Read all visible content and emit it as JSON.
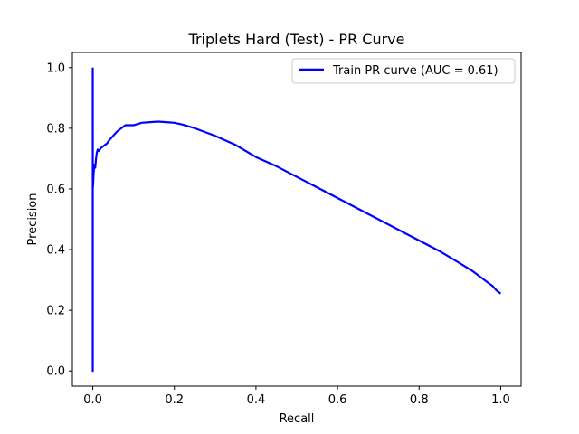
{
  "chart_data": {
    "type": "line",
    "title": "Triplets Hard (Test) - PR Curve",
    "xlabel": "Recall",
    "ylabel": "Precision",
    "xlim": [
      -0.05,
      1.05
    ],
    "ylim": [
      -0.05,
      1.05
    ],
    "xticks": [
      0.0,
      0.2,
      0.4,
      0.6,
      0.8,
      1.0
    ],
    "xtick_labels": [
      "0.0",
      "0.2",
      "0.4",
      "0.6",
      "0.8",
      "1.0"
    ],
    "yticks": [
      0.0,
      0.2,
      0.4,
      0.6,
      0.8,
      1.0
    ],
    "ytick_labels": [
      "0.0",
      "0.2",
      "0.4",
      "0.6",
      "0.8",
      "1.0"
    ],
    "grid": false,
    "legend_position": "top-right",
    "series": [
      {
        "name": "Train PR curve (AUC = 0.61)",
        "color": "#0000ff",
        "x": [
          0.0,
          0.0,
          0.0,
          0.001,
          0.002,
          0.004,
          0.006,
          0.008,
          0.01,
          0.012,
          0.015,
          0.02,
          0.025,
          0.03,
          0.035,
          0.04,
          0.05,
          0.06,
          0.07,
          0.08,
          0.1,
          0.12,
          0.14,
          0.16,
          0.18,
          0.2,
          0.22,
          0.25,
          0.3,
          0.35,
          0.4,
          0.45,
          0.5,
          0.55,
          0.6,
          0.65,
          0.7,
          0.75,
          0.8,
          0.85,
          0.9,
          0.93,
          0.95,
          0.97,
          0.98,
          0.99,
          1.0
        ],
        "y": [
          1.0,
          0.0,
          0.6,
          0.62,
          0.65,
          0.68,
          0.67,
          0.7,
          0.72,
          0.73,
          0.725,
          0.735,
          0.74,
          0.745,
          0.75,
          0.76,
          0.775,
          0.79,
          0.8,
          0.81,
          0.81,
          0.818,
          0.82,
          0.822,
          0.82,
          0.818,
          0.812,
          0.8,
          0.775,
          0.745,
          0.705,
          0.675,
          0.64,
          0.605,
          0.57,
          0.535,
          0.5,
          0.465,
          0.43,
          0.395,
          0.355,
          0.33,
          0.31,
          0.29,
          0.28,
          0.265,
          0.255
        ]
      }
    ]
  }
}
